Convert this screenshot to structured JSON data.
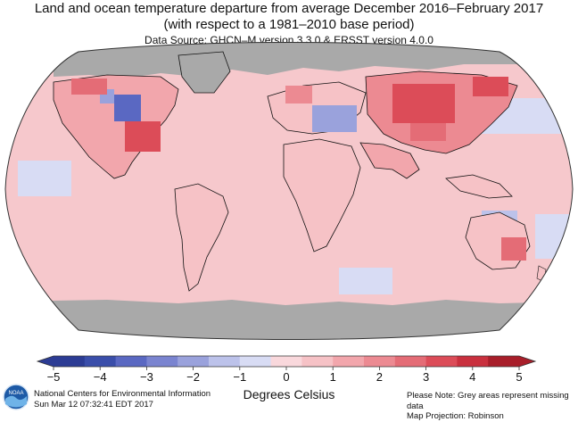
{
  "header": {
    "title_line1": "Land and ocean temperature departure from average December 2016–February 2017",
    "title_line2": "(with respect to a 1981–2010 base period)",
    "data_source": "Data Source: GHCN–M version 3.3.0 & ERSST version 4.0.0"
  },
  "colorbar": {
    "units_label": "Degrees Celsius",
    "range": [
      -5,
      5
    ],
    "tick_labels": [
      "−5",
      "−4",
      "−3",
      "−2",
      "−1",
      "0",
      "1",
      "2",
      "3",
      "4",
      "5"
    ],
    "colors": [
      "#2c3c94",
      "#3a4eaa",
      "#5a68c2",
      "#7a84d0",
      "#9aa2dc",
      "#bcc2ea",
      "#d8dcf4",
      "#f9d8dc",
      "#f6c2c6",
      "#f2a6ac",
      "#ec8a92",
      "#e46c76",
      "#dc4c58",
      "#c9303e",
      "#a81e2a"
    ]
  },
  "map": {
    "projection": "Robinson",
    "missing_color": "#a9a9a9",
    "ocean_base_color": "#f6c8cc"
  },
  "footer": {
    "org_line": "National Centers for Environmental Information",
    "timestamp": "Sun Mar 12 07:32:41 EDT 2017",
    "note_line1": "Please Note: Grey areas represent missing data",
    "note_line2": "Map Projection: Robinson",
    "logo_text": "NOAA"
  }
}
